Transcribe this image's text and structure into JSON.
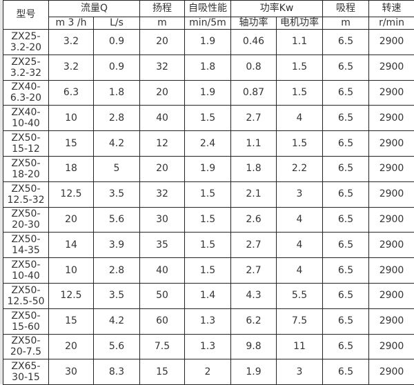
{
  "headers": {
    "model": "型号",
    "flow": "流量Q",
    "flow_m3h": "m 3 /h",
    "flow_ls": "L/s",
    "head": "扬程",
    "head_unit": "m",
    "self_priming": "自吸性能",
    "self_priming_unit": "min/5m",
    "power": "功率Kw",
    "shaft_power": "轴功率",
    "motor_power": "电机功率",
    "suction": "吸程",
    "suction_unit": "m",
    "speed": "转速",
    "speed_unit": "r/min"
  },
  "rows": [
    {
      "model_a": "ZX25-",
      "model_b": "3.2-20",
      "m3h": "3.2",
      "ls": "0.9",
      "head": "20",
      "prime": "1.9",
      "shaft": "0.46",
      "motor": "1.1",
      "suction": "6.5",
      "speed": "2900"
    },
    {
      "model_a": "ZX25-",
      "model_b": "3.2-32",
      "m3h": "3.2",
      "ls": "0.9",
      "head": "32",
      "prime": "1.8",
      "shaft": "0.8",
      "motor": "1.5",
      "suction": "6.5",
      "speed": "2900"
    },
    {
      "model_a": "ZX40-",
      "model_b": "6.3-20",
      "m3h": "6.3",
      "ls": "1.8",
      "head": "20",
      "prime": "1.9",
      "shaft": "0.87",
      "motor": "1.5",
      "suction": "6.5",
      "speed": "2900"
    },
    {
      "model_a": "ZX40-",
      "model_b": "10-40",
      "m3h": "10",
      "ls": "2.8",
      "head": "40",
      "prime": "1.5",
      "shaft": "2.7",
      "motor": "4",
      "suction": "6.5",
      "speed": "2900"
    },
    {
      "model_a": "ZX50-",
      "model_b": "15-12",
      "m3h": "15",
      "ls": "4.2",
      "head": "12",
      "prime": "2.4",
      "shaft": "1.1",
      "motor": "1.5",
      "suction": "6.5",
      "speed": "2900"
    },
    {
      "model_a": "ZX50-",
      "model_b": "18-20",
      "m3h": "18",
      "ls": "5",
      "head": "20",
      "prime": "1.9",
      "shaft": "1.8",
      "motor": "2.2",
      "suction": "6.5",
      "speed": "2900"
    },
    {
      "model_a": "ZX50-",
      "model_b": "12.5-32",
      "m3h": "12.5",
      "ls": "3.5",
      "head": "32",
      "prime": "1.5",
      "shaft": "2.1",
      "motor": "3",
      "suction": "6.5",
      "speed": "2900"
    },
    {
      "model_a": "ZX50-",
      "model_b": "20-30",
      "m3h": "20",
      "ls": "5.6",
      "head": "30",
      "prime": "1.5",
      "shaft": "2.6",
      "motor": "4",
      "suction": "6.5",
      "speed": "2900"
    },
    {
      "model_a": "ZX50-",
      "model_b": "14-35",
      "m3h": "14",
      "ls": "3.9",
      "head": "35",
      "prime": "1.5",
      "shaft": "2.7",
      "motor": "4",
      "suction": "6.5",
      "speed": "2900"
    },
    {
      "model_a": "ZX50-",
      "model_b": "10-40",
      "m3h": "10",
      "ls": "2.8",
      "head": "40",
      "prime": "1.5",
      "shaft": "2.7",
      "motor": "4",
      "suction": "6.5",
      "speed": "2900"
    },
    {
      "model_a": "ZX50-",
      "model_b": "12.5-50",
      "m3h": "12.5",
      "ls": "3.5",
      "head": "50",
      "prime": "1.4",
      "shaft": "4.3",
      "motor": "5.5",
      "suction": "6.5",
      "speed": "2900"
    },
    {
      "model_a": "ZX50-",
      "model_b": "15-60",
      "m3h": "15",
      "ls": "4.2",
      "head": "60",
      "prime": "1.3",
      "shaft": "6.2",
      "motor": "7.5",
      "suction": "6.5",
      "speed": "2900"
    },
    {
      "model_a": "ZX50-",
      "model_b": "20-7.5",
      "m3h": "20",
      "ls": "5.6",
      "head": "7.5",
      "prime": "1.3",
      "shaft": "9.8",
      "motor": "11",
      "suction": "6.5",
      "speed": "2900"
    },
    {
      "model_a": "ZX65-",
      "model_b": "30-15",
      "m3h": "30",
      "ls": "8.3",
      "head": "15",
      "prime": "2",
      "shaft": "1.9",
      "motor": "3",
      "suction": "6.5",
      "speed": "2900"
    }
  ]
}
